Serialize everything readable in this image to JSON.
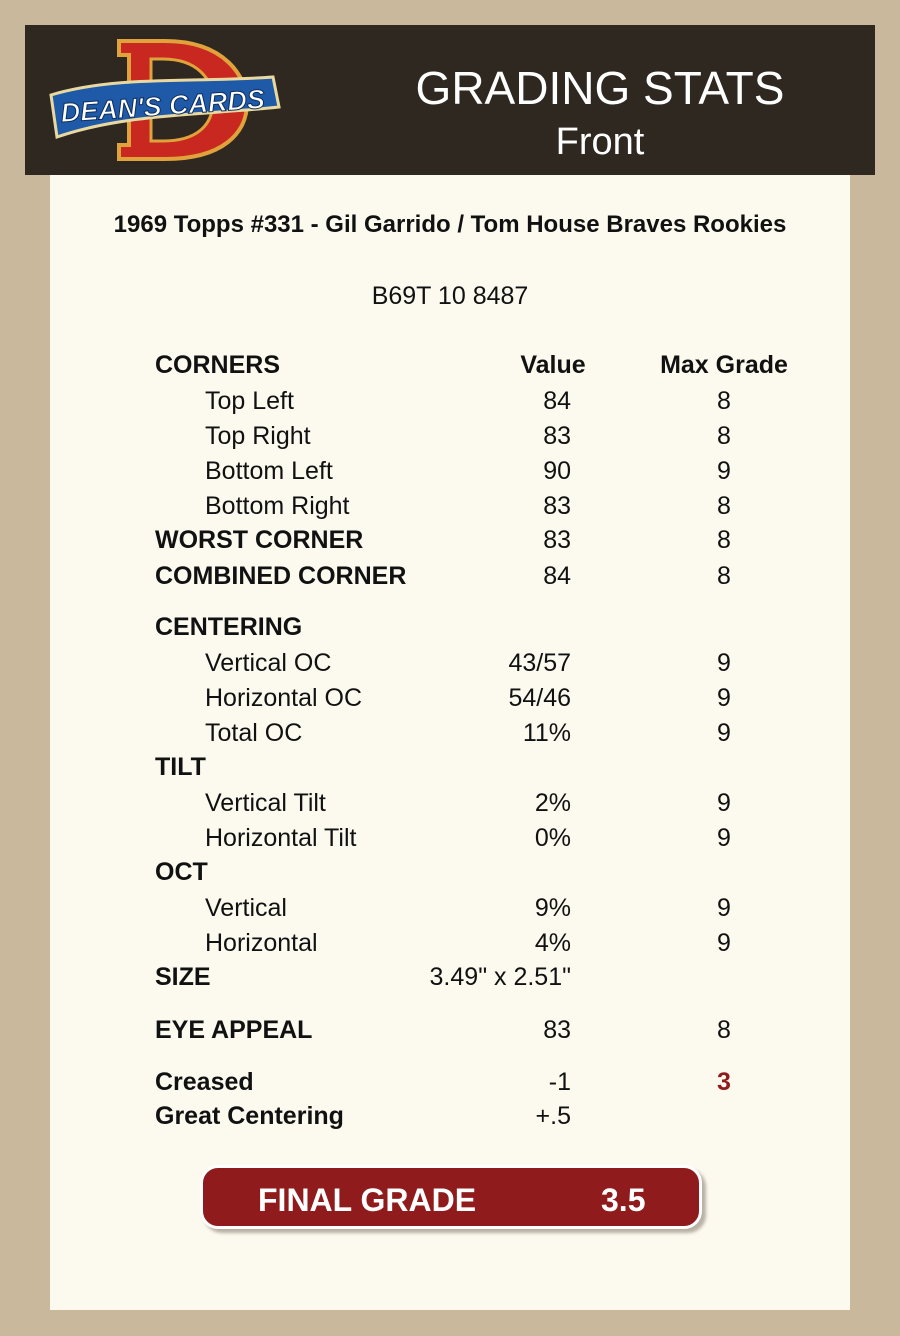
{
  "header": {
    "logo_text": "DEAN'S CARDS",
    "title": "GRADING STATS",
    "subtitle": "Front"
  },
  "card": {
    "name": "1969 Topps #331  -  Gil Garrido / Tom House Braves Rookies",
    "cert": "B69T 10 8487"
  },
  "table": {
    "rows": [
      [
        "CORNERS",
        "Value",
        "Max Grade"
      ],
      [
        "Top Left",
        84,
        8
      ],
      [
        "Top Right",
        83,
        8
      ],
      [
        "Bottom Left",
        90,
        9
      ],
      [
        "Bottom Right",
        83,
        8
      ],
      [
        "WORST CORNER",
        83,
        8
      ],
      [
        "COMBINED CORNER",
        84,
        8
      ],
      [
        "CENTERING"
      ],
      [
        "Vertical OC",
        "43/57",
        9
      ],
      [
        "Horizontal OC",
        "54/46",
        9
      ],
      [
        "Total OC",
        "11%",
        9
      ],
      [
        "TILT"
      ],
      [
        "Vertical Tilt",
        "2%",
        9
      ],
      [
        "Horizontal Tilt",
        "0%",
        9
      ],
      [
        "OCT"
      ],
      [
        "Vertical",
        "9%",
        9
      ],
      [
        "Horizontal",
        "4%",
        9
      ],
      [
        "SIZE",
        "3.49\" x 2.51\""
      ],
      [
        "EYE APPEAL",
        83,
        8
      ],
      [
        "Creased",
        -1,
        3
      ],
      [
        "Great Centering",
        "+.5"
      ]
    ]
  },
  "final_grade": {
    "label": "FINAL GRADE",
    "value": 3.5
  }
}
